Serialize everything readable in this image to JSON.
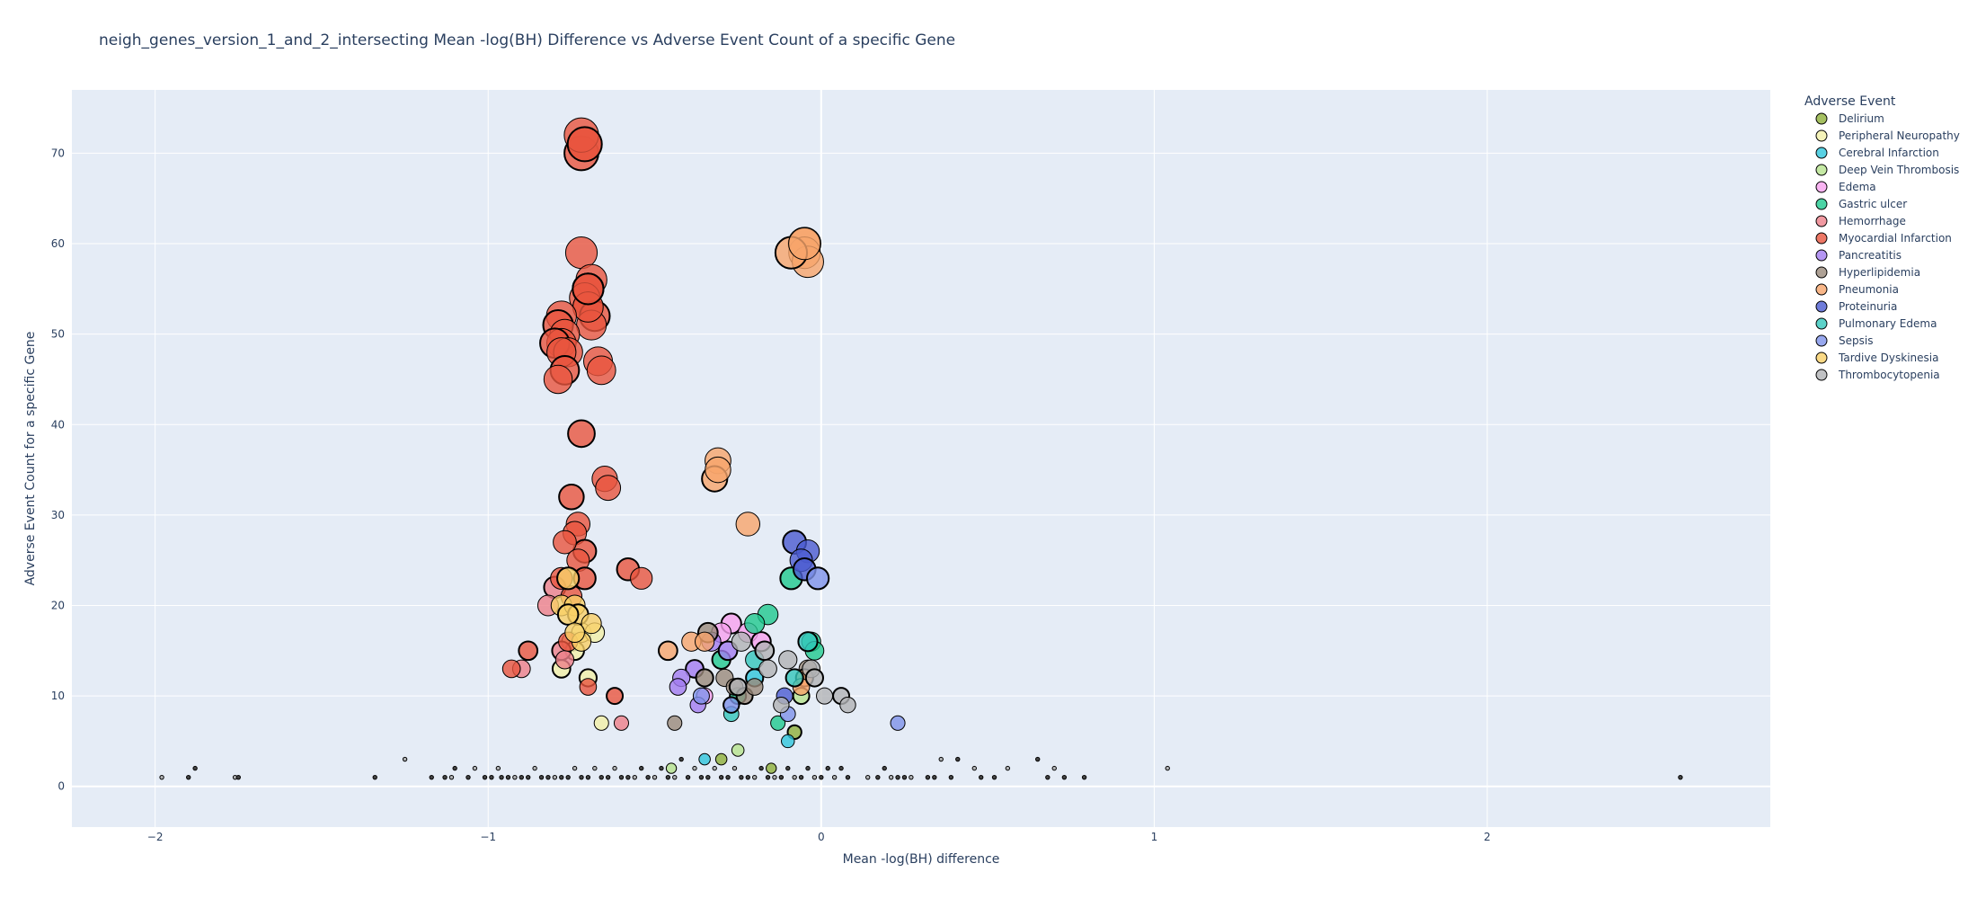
{
  "chart_data": {
    "type": "scatter",
    "title": "neigh_genes_version_1_and_2_intersecting Mean -log(BH) Difference vs Adverse Event Count of a specific Gene",
    "xlabel": "Mean -log(BH) difference",
    "ylabel": "Adverse Event Count for a specific Gene",
    "xlim": [
      -2.25,
      2.85
    ],
    "ylim": [
      -4.5,
      77
    ],
    "x_ticks": [
      -2,
      -1,
      0,
      1,
      2
    ],
    "x_tick_labels": [
      "−2",
      "−1",
      "0",
      "1",
      "2"
    ],
    "y_ticks": [
      0,
      10,
      20,
      30,
      40,
      50,
      60,
      70
    ],
    "y_tick_labels": [
      "0",
      "10",
      "20",
      "30",
      "40",
      "50",
      "60",
      "70"
    ],
    "grid": true,
    "legend_title": "Adverse Event",
    "legend_position": "right",
    "colors": {
      "plot_background": "#e5ecf6",
      "grid": "#ffffff",
      "text": "#2a3f5f",
      "marker_outline": "#000000"
    },
    "series": [
      {
        "name": "Delirium",
        "color": "#8fb03a",
        "x": [
          -0.08,
          -0.3,
          -0.15
        ],
        "y": [
          6,
          3,
          2
        ]
      },
      {
        "name": "Peripheral Neuropathy",
        "color": "#f2f0a8",
        "x": [
          -0.78,
          -0.75,
          -0.72,
          -0.7,
          -0.68,
          -0.66,
          -0.74
        ],
        "y": [
          13,
          16,
          17,
          12,
          17,
          7,
          15
        ]
      },
      {
        "name": "Cerebral Infarction",
        "color": "#2fc6dc",
        "x": [
          -0.2,
          -0.35,
          -0.1
        ],
        "y": [
          12,
          3,
          5
        ]
      },
      {
        "name": "Deep Vein Thrombosis",
        "color": "#b6e38d",
        "x": [
          -0.06,
          -0.25,
          -0.45
        ],
        "y": [
          10,
          4,
          2
        ]
      },
      {
        "name": "Edema",
        "color": "#f7a1ef",
        "x": [
          -0.27,
          -0.22,
          -0.3,
          -0.18,
          -0.35
        ],
        "y": [
          18,
          17,
          17,
          16,
          10
        ]
      },
      {
        "name": "Gastric ulcer",
        "color": "#1fc98f",
        "x": [
          -0.09,
          -0.16,
          -0.2,
          -0.3,
          -0.03,
          -0.02,
          -0.25,
          -0.13
        ],
        "y": [
          23,
          19,
          18,
          14,
          16,
          15,
          10,
          7
        ]
      },
      {
        "name": "Hemorrhage",
        "color": "#ee7f8a",
        "x": [
          -0.8,
          -0.82,
          -0.9,
          -0.78,
          -0.77,
          -0.6
        ],
        "y": [
          22,
          20,
          13,
          15,
          14,
          7
        ]
      },
      {
        "name": "Myocardial Infarction",
        "color": "#e8553e",
        "x": [
          -0.72,
          -0.71,
          -0.72,
          -0.71,
          -0.72,
          -0.69,
          -0.7,
          -0.71,
          -0.7,
          -0.68,
          -0.69,
          -0.7,
          -0.7,
          -0.67,
          -0.78,
          -0.79,
          -0.77,
          -0.78,
          -0.8,
          -0.76,
          -0.78,
          -0.77,
          -0.79,
          -0.66,
          -0.72,
          -0.65,
          -0.64,
          -0.75,
          -0.73,
          -0.74,
          -0.71,
          -0.77,
          -0.73,
          -0.71,
          -0.75,
          -0.78,
          -0.58,
          -0.54,
          -0.93,
          -0.88,
          -0.76,
          -0.7,
          -0.62
        ],
        "y": [
          70,
          71,
          72,
          71,
          59,
          56,
          55,
          54,
          53,
          52,
          51,
          53,
          55,
          47,
          52,
          51,
          50,
          49,
          49,
          48,
          48,
          46,
          45,
          46,
          39,
          34,
          33,
          32,
          29,
          28,
          26,
          27,
          25,
          23,
          21,
          23,
          24,
          23,
          13,
          15,
          16,
          11,
          10
        ]
      },
      {
        "name": "Pancreatitis",
        "color": "#a37cf0",
        "x": [
          -0.38,
          -0.42,
          -0.33,
          -0.28,
          -0.43,
          -0.37
        ],
        "y": [
          13,
          12,
          16,
          15,
          11,
          9
        ]
      },
      {
        "name": "Hyperlipidemia",
        "color": "#9a8a7a",
        "x": [
          -0.34,
          -0.29,
          -0.26,
          -0.23,
          -0.2,
          -0.04,
          -0.35,
          -0.44
        ],
        "y": [
          17,
          12,
          11,
          10,
          11,
          13,
          12,
          7
        ]
      },
      {
        "name": "Pneumonia",
        "color": "#f7a56b",
        "x": [
          -0.05,
          -0.05,
          -0.04,
          -0.09,
          -0.05,
          -0.31,
          -0.32,
          -0.31,
          -0.22,
          -0.46,
          -0.39,
          -0.35,
          -0.05,
          -0.06
        ],
        "y": [
          60,
          59,
          58,
          59,
          60,
          36,
          34,
          35,
          29,
          15,
          16,
          16,
          12,
          11
        ]
      },
      {
        "name": "Proteinuria",
        "color": "#4b5bd1",
        "x": [
          -0.08,
          -0.04,
          -0.06,
          -0.05,
          -0.11
        ],
        "y": [
          27,
          26,
          25,
          24,
          10
        ]
      },
      {
        "name": "Pulmonary Edema",
        "color": "#33c7bc",
        "x": [
          -0.04,
          -0.2,
          -0.27,
          -0.08
        ],
        "y": [
          16,
          14,
          8,
          12
        ]
      },
      {
        "name": "Sepsis",
        "color": "#7e92ea",
        "x": [
          -0.01,
          0.23,
          -0.36,
          -0.27,
          -0.1
        ],
        "y": [
          23,
          7,
          10,
          9,
          8
        ]
      },
      {
        "name": "Tardive Dyskinesia",
        "color": "#f9d067",
        "x": [
          -0.76,
          -0.78,
          -0.74,
          -0.73,
          -0.72,
          -0.69,
          -0.76,
          -0.74
        ],
        "y": [
          23,
          20,
          20,
          19,
          16,
          18,
          19,
          17
        ]
      },
      {
        "name": "Thrombocytopenia",
        "color": "#b1b3b5",
        "x": [
          -0.17,
          -0.24,
          -0.03,
          -0.02,
          -0.1,
          0.01,
          0.06,
          0.08,
          -0.16,
          -0.25,
          -0.12
        ],
        "y": [
          15,
          16,
          13,
          12,
          14,
          10,
          10,
          9,
          13,
          11,
          9
        ]
      }
    ]
  }
}
